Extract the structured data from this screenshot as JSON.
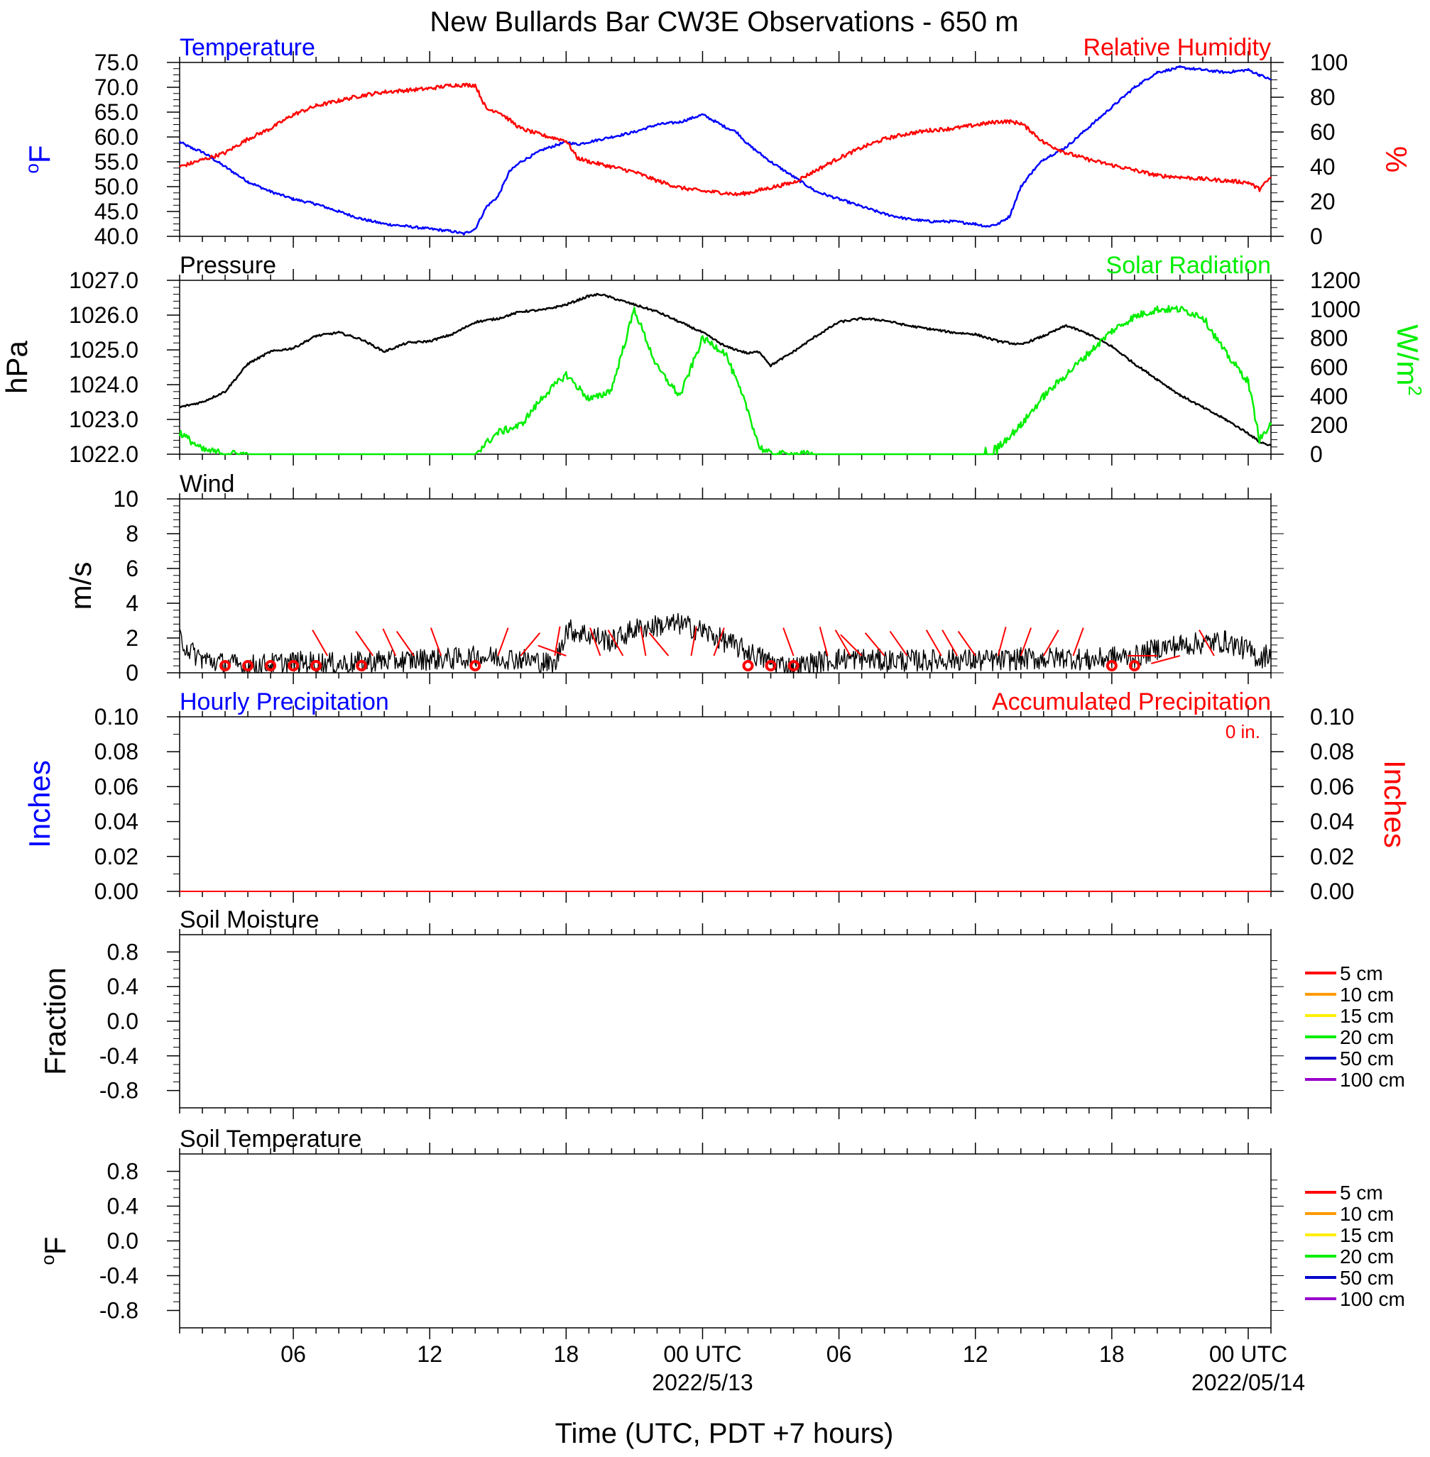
{
  "title": "New Bullards Bar CW3E Observations - 650 m",
  "colors": {
    "temperature": "#0000ff",
    "humidity": "#ff0000",
    "pressure": "#000000",
    "solar": "#00ee00",
    "wind_barbs": "#ff0000",
    "precip_hourly": "#0000ff",
    "precip_accum": "#ff0000"
  },
  "xaxis": {
    "label": "Time (UTC, PDT +7 hours)",
    "range_hours": [
      0,
      48
    ],
    "tick_labels": [
      {
        "h": 5,
        "label": "06"
      },
      {
        "h": 11,
        "label": "12"
      },
      {
        "h": 17,
        "label": "18"
      },
      {
        "h": 23,
        "label": "00 UTC",
        "sub": "2022/5/13"
      },
      {
        "h": 29,
        "label": "06"
      },
      {
        "h": 35,
        "label": "12"
      },
      {
        "h": 41,
        "label": "18"
      },
      {
        "h": 47,
        "label": "00 UTC",
        "sub": "2022/05/14"
      }
    ]
  },
  "chart_data": [
    {
      "type": "line",
      "panel": "temp_rh",
      "title": "Temperature",
      "right_title": "Relative Humidity",
      "ylabel": "°F",
      "ylabel_sup": "o",
      "ylabel_main": "F",
      "y2label": "%",
      "ylim": [
        40,
        75
      ],
      "y2lim": [
        0,
        100
      ],
      "yticks": [
        "40.0",
        "45.0",
        "50.0",
        "55.0",
        "60.0",
        "65.0",
        "70.0",
        "75.0"
      ],
      "y2ticks": [
        "0",
        "20",
        "40",
        "60",
        "80",
        "100"
      ],
      "x_hours": [
        0,
        0.5,
        1,
        2,
        3,
        4,
        5,
        6,
        7,
        8,
        9,
        10,
        11,
        12,
        12.5,
        13,
        13.5,
        14,
        14.5,
        15,
        16,
        17,
        17.5,
        18,
        19,
        20,
        21,
        22,
        23,
        24,
        24.5,
        25,
        26,
        27,
        28,
        29,
        30,
        31,
        32,
        33,
        34,
        35,
        35.5,
        36,
        36.5,
        37,
        37.5,
        38,
        39,
        40,
        41,
        42,
        43,
        44,
        45,
        46,
        47,
        47.5,
        48
      ],
      "series": [
        {
          "name": "Temperature",
          "axis": "left",
          "values": [
            59.0,
            57.8,
            57.0,
            54.0,
            51.0,
            49.0,
            47.5,
            46.5,
            45.0,
            43.5,
            42.5,
            42.0,
            41.5,
            41.0,
            40.5,
            41.5,
            46.0,
            48.0,
            53.0,
            55.0,
            57.5,
            59.0,
            58.5,
            59.0,
            60.0,
            61.0,
            62.5,
            63.0,
            64.5,
            62.0,
            61.0,
            58.5,
            55.0,
            52.0,
            49.0,
            47.5,
            46.0,
            44.5,
            43.5,
            43.0,
            43.0,
            42.5,
            42.0,
            42.5,
            44.0,
            50.0,
            53.0,
            55.5,
            58.0,
            62.0,
            66.0,
            70.0,
            73.0,
            74.0,
            73.5,
            73.0,
            73.5,
            72.5,
            71.5
          ]
        },
        {
          "name": "Relative Humidity",
          "axis": "right",
          "values": [
            40,
            42,
            44,
            48,
            56,
            62,
            70,
            75,
            78,
            81,
            83,
            84,
            85,
            87,
            87,
            87,
            73,
            72,
            67,
            62,
            58,
            55,
            45,
            43,
            40,
            37,
            32,
            28,
            26,
            25,
            24,
            25,
            28,
            31,
            38,
            45,
            51,
            56,
            59,
            61,
            62,
            64,
            65,
            66,
            66,
            65,
            60,
            54,
            48,
            44,
            41,
            38,
            35,
            34,
            33,
            32,
            31,
            27,
            34
          ]
        }
      ]
    },
    {
      "type": "line",
      "panel": "pressure_solar",
      "title": "Pressure",
      "right_title": "Solar Radiation",
      "ylabel": "hPa",
      "y2label": "W/m²",
      "y2label_main": "W/m",
      "y2label_sup": "2",
      "ylim": [
        1022,
        1027
      ],
      "y2lim": [
        0,
        1200
      ],
      "yticks": [
        "1022.0",
        "1023.0",
        "1024.0",
        "1025.0",
        "1026.0",
        "1027.0"
      ],
      "y2ticks": [
        "0",
        "200",
        "400",
        "600",
        "800",
        "1000",
        "1200"
      ],
      "x_hours": [
        0,
        1,
        2,
        3,
        4,
        5,
        6,
        7,
        8,
        9,
        10,
        11,
        12,
        13,
        14,
        15,
        16,
        17,
        18,
        18.5,
        19,
        20,
        21,
        22,
        23,
        24,
        25,
        25.5,
        26,
        27,
        28,
        29,
        30,
        31,
        32,
        33,
        34,
        35,
        36,
        37,
        38,
        39,
        40,
        41,
        42,
        43,
        44,
        45,
        46,
        47,
        47.5,
        48
      ],
      "series": [
        {
          "name": "Pressure",
          "axis": "left",
          "values": [
            1023.35,
            1023.5,
            1023.8,
            1024.6,
            1024.95,
            1025.05,
            1025.4,
            1025.5,
            1025.3,
            1024.95,
            1025.2,
            1025.25,
            1025.45,
            1025.8,
            1025.9,
            1026.1,
            1026.15,
            1026.3,
            1026.55,
            1026.6,
            1026.5,
            1026.3,
            1026.1,
            1025.8,
            1025.5,
            1025.1,
            1024.9,
            1024.95,
            1024.55,
            1024.95,
            1025.4,
            1025.8,
            1025.9,
            1025.85,
            1025.7,
            1025.6,
            1025.5,
            1025.45,
            1025.25,
            1025.15,
            1025.4,
            1025.7,
            1025.45,
            1025.1,
            1024.6,
            1024.15,
            1023.7,
            1023.35,
            1023.0,
            1022.6,
            1022.35,
            1022.25
          ]
        },
        {
          "name": "Solar Radiation",
          "axis": "right",
          "values": [
            150,
            30,
            5,
            0,
            0,
            0,
            0,
            0,
            0,
            0,
            0,
            0,
            0,
            5,
            150,
            200,
            400,
            550,
            380,
            400,
            450,
            1000,
            600,
            400,
            800,
            700,
            300,
            50,
            0,
            0,
            0,
            0,
            0,
            0,
            0,
            0,
            0,
            0,
            50,
            200,
            400,
            550,
            700,
            850,
            950,
            1000,
            1000,
            950,
            700,
            500,
            100,
            200
          ]
        }
      ]
    },
    {
      "type": "line",
      "panel": "wind",
      "title": "Wind",
      "ylabel": "m/s",
      "ylim": [
        0,
        10
      ],
      "yticks": [
        "0",
        "2",
        "4",
        "6",
        "8",
        "10"
      ],
      "x_hours": [
        0,
        0.5,
        1,
        2,
        3,
        4,
        5,
        6,
        7,
        8,
        9,
        10,
        11,
        12,
        13,
        14,
        15,
        16,
        16.5,
        17,
        18,
        19,
        20,
        21,
        22,
        23,
        24,
        25,
        26,
        27,
        28,
        29,
        30,
        31,
        32,
        33,
        34,
        35,
        36,
        37,
        38,
        39,
        40,
        41,
        42,
        43,
        44,
        45,
        46,
        47,
        47.5,
        48
      ],
      "series": [
        {
          "name": "Wind Speed",
          "values": [
            2.0,
            1.2,
            0.8,
            0.5,
            0.4,
            0.5,
            0.6,
            0.6,
            0.5,
            0.6,
            0.7,
            0.7,
            0.8,
            0.8,
            0.9,
            0.9,
            0.8,
            0.6,
            0.4,
            2.5,
            2.2,
            1.8,
            2.5,
            2.7,
            2.8,
            2.4,
            1.8,
            1.2,
            0.6,
            0.3,
            0.6,
            0.8,
            0.8,
            0.7,
            0.7,
            0.7,
            0.8,
            0.7,
            0.7,
            0.8,
            0.8,
            0.9,
            0.7,
            0.9,
            0.9,
            1.4,
            1.6,
            1.7,
            1.8,
            1.3,
            0.8,
            1.2
          ]
        }
      ],
      "calm_hours": [
        2,
        3,
        4,
        5,
        6,
        8,
        13,
        25,
        26,
        27,
        41,
        42
      ],
      "barbs": [
        {
          "h": 6.5,
          "dir": 330
        },
        {
          "h": 8.5,
          "dir": 325
        },
        {
          "h": 9.5,
          "dir": 335
        },
        {
          "h": 10.3,
          "dir": 325
        },
        {
          "h": 11.5,
          "dir": 340
        },
        {
          "h": 14,
          "dir": 20
        },
        {
          "h": 15,
          "dir": 40
        },
        {
          "h": 16.5,
          "dir": 10
        },
        {
          "h": 17,
          "dir": 290
        },
        {
          "h": 18.5,
          "dir": 340
        },
        {
          "h": 19.5,
          "dir": 330
        },
        {
          "h": 20.5,
          "dir": 350
        },
        {
          "h": 21.5,
          "dir": 320
        },
        {
          "h": 22.5,
          "dir": 10
        },
        {
          "h": 23.5,
          "dir": 20
        },
        {
          "h": 27,
          "dir": 340
        },
        {
          "h": 28.5,
          "dir": 345
        },
        {
          "h": 29.5,
          "dir": 330
        },
        {
          "h": 30,
          "dir": 315
        },
        {
          "h": 31,
          "dir": 320
        },
        {
          "h": 32,
          "dir": 325
        },
        {
          "h": 33.5,
          "dir": 330
        },
        {
          "h": 34.2,
          "dir": 330
        },
        {
          "h": 35,
          "dir": 325
        },
        {
          "h": 36,
          "dir": 15
        },
        {
          "h": 37,
          "dir": 20
        },
        {
          "h": 38,
          "dir": 30
        },
        {
          "h": 39.3,
          "dir": 20
        },
        {
          "h": 43,
          "dir": 270
        },
        {
          "h": 44,
          "dir": 255
        },
        {
          "h": 45.5,
          "dir": 330
        }
      ]
    },
    {
      "type": "line",
      "panel": "precip",
      "title": "Hourly Precipitation",
      "right_title": "Accumulated Precipitation",
      "annotation": "0 in.",
      "ylabel": "Inches",
      "y2label": "Inches",
      "ylim": [
        0,
        0.1
      ],
      "yticks": [
        "0.00",
        "0.02",
        "0.04",
        "0.06",
        "0.08",
        "0.10"
      ],
      "y2ticks": [
        "0.00",
        "0.02",
        "0.04",
        "0.06",
        "0.08",
        "0.10"
      ],
      "x_hours": [
        0,
        48
      ],
      "series": [
        {
          "name": "Hourly Precipitation",
          "values": [
            0,
            0
          ]
        },
        {
          "name": "Accumulated Precipitation",
          "values": [
            0,
            0
          ]
        }
      ]
    },
    {
      "type": "line",
      "panel": "soil_moisture",
      "title": "Soil Moisture",
      "ylabel": "Fraction",
      "ylim": [
        -1,
        1
      ],
      "yticks": [
        "-0.8",
        "-0.4",
        "0.0",
        "0.4",
        "0.8"
      ],
      "ytick_values": [
        -0.8,
        -0.4,
        0.0,
        0.4,
        0.8
      ],
      "legend": [
        {
          "name": "5 cm",
          "color": "#ff0000"
        },
        {
          "name": "10 cm",
          "color": "#ff9900"
        },
        {
          "name": "15 cm",
          "color": "#ffee00"
        },
        {
          "name": "20 cm",
          "color": "#00ee00"
        },
        {
          "name": "50 cm",
          "color": "#0000cc"
        },
        {
          "name": "100 cm",
          "color": "#9900cc"
        }
      ],
      "series": []
    },
    {
      "type": "line",
      "panel": "soil_temperature",
      "title": "Soil Temperature",
      "ylabel": "°F",
      "ylabel_sup": "o",
      "ylabel_main": "F",
      "ylim": [
        -1,
        1
      ],
      "yticks": [
        "-0.8",
        "-0.4",
        "0.0",
        "0.4",
        "0.8"
      ],
      "ytick_values": [
        -0.8,
        -0.4,
        0.0,
        0.4,
        0.8
      ],
      "legend": [
        {
          "name": "5 cm",
          "color": "#ff0000"
        },
        {
          "name": "10 cm",
          "color": "#ff9900"
        },
        {
          "name": "15 cm",
          "color": "#ffee00"
        },
        {
          "name": "20 cm",
          "color": "#00ee00"
        },
        {
          "name": "50 cm",
          "color": "#0000cc"
        },
        {
          "name": "100 cm",
          "color": "#9900cc"
        }
      ],
      "series": []
    }
  ]
}
